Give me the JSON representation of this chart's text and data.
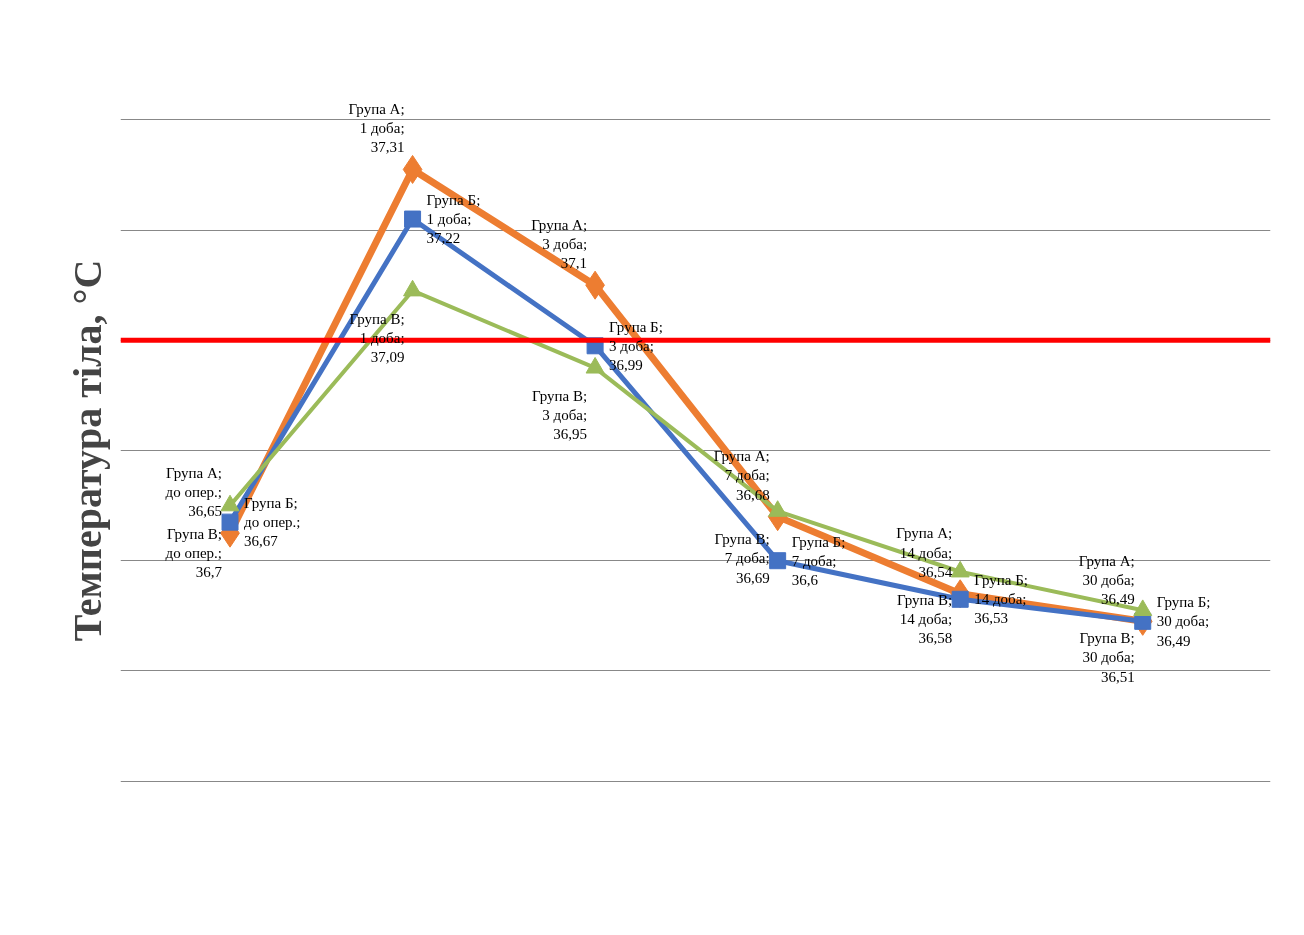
{
  "chart_data": {
    "type": "line",
    "ylabel": "Температура тіла, °С",
    "categories": [
      null,
      null,
      null,
      null,
      null,
      null
    ],
    "yticks": [
      {
        "value": 36.2,
        "label": null
      },
      {
        "value": 36.4,
        "label": null
      },
      {
        "value": 36.6,
        "label": null
      },
      {
        "value": 36.8,
        "label": null
      },
      {
        "value": 37.0,
        "label": null
      },
      {
        "value": 37.2,
        "label": null
      },
      {
        "value": 37.4,
        "label": null
      }
    ],
    "tick_labels": false,
    "grid": "y",
    "line_style": "solid",
    "series": [
      {
        "color": "#ed7d31",
        "marker": "diamond",
        "values": [
          36.65,
          37.31,
          37.1,
          36.68,
          36.54,
          36.49
        ],
        "value_labels": [
          "Група А; до опер.; 36,65",
          "Група А; 1 доба; 37,31",
          "Група А; 3 доба; 37,1",
          "Група А; 7 доба; 36,68",
          "Група А; 14 доба; 36,54",
          "Група А; 30 доба; 36,49"
        ]
      },
      {
        "color": "#4472c4",
        "marker": "square",
        "values": [
          36.67,
          37.22,
          36.99,
          36.6,
          36.53,
          36.49
        ],
        "value_labels": [
          "Група Б; до опер.; 36,67",
          "Група Б; 1 доба; 37,22",
          "Група Б; 3 доба; 36,99",
          "Група Б; 7 доба; 36,6",
          "Група Б; 14 доба; 36,53",
          "Група Б; 30 доба; 36,49"
        ]
      },
      {
        "color": "#9bbb59",
        "marker": "triangle",
        "values": [
          36.7,
          37.09,
          36.95,
          36.69,
          36.58,
          36.51
        ],
        "value_labels": [
          "Група В; до опер.; 36,7",
          "Група В; 1 доба; 37,09",
          "Група В; 3 доба; 36,95",
          "Група В; 7 доба; 36,69",
          "Група В; 14 доба; 36,58",
          "Група В; 30 доба; 36,51"
        ]
      }
    ],
    "ref_lines": [
      {
        "axis": "y",
        "value": 37.0,
        "label": null,
        "color": "#ff0000"
      }
    ]
  }
}
